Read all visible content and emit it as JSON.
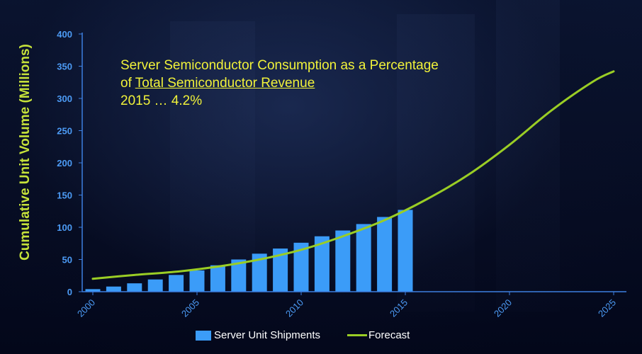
{
  "colors": {
    "bar": "#3b9cf8",
    "forecast_line": "#9acd25",
    "axis": "#3d7fe0",
    "tick_label": "#4c9bf5",
    "ylabel": "#c6e23a",
    "annotation": "#f1f23a"
  },
  "annotation": {
    "line1": "Server Semiconductor Consumption as a Percentage",
    "line2_prefix": "of ",
    "line2_underlined": "Total Semiconductor Revenue",
    "line3": "2015 … 4.2%"
  },
  "chart_data": {
    "type": "bar",
    "title": "",
    "xlabel": "",
    "ylabel": "Cumulative Unit Volume (Millions)",
    "xlim": [
      2000,
      2025
    ],
    "ylim": [
      0,
      400
    ],
    "yticks": [
      0,
      50,
      100,
      150,
      200,
      250,
      300,
      350,
      400
    ],
    "xticks": [
      2000,
      2005,
      2010,
      2015,
      2020,
      2025
    ],
    "grid": false,
    "legend_position": "bottom",
    "series": [
      {
        "name": "Server Unit Shipments",
        "type": "bar",
        "x": [
          2000,
          2001,
          2002,
          2003,
          2004,
          2005,
          2006,
          2007,
          2008,
          2009,
          2010,
          2011,
          2012,
          2013,
          2014,
          2015
        ],
        "values": [
          4,
          8,
          13,
          19,
          26,
          33,
          41,
          50,
          59,
          67,
          76,
          86,
          95,
          105,
          116,
          127
        ]
      },
      {
        "name": "Forecast",
        "type": "line",
        "x": [
          2000,
          2002,
          2004,
          2006,
          2008,
          2010,
          2012,
          2014,
          2016,
          2018,
          2020,
          2022,
          2024,
          2025
        ],
        "values": [
          20,
          26,
          31,
          39,
          50,
          65,
          86,
          111,
          143,
          181,
          228,
          281,
          326,
          342
        ]
      }
    ]
  }
}
